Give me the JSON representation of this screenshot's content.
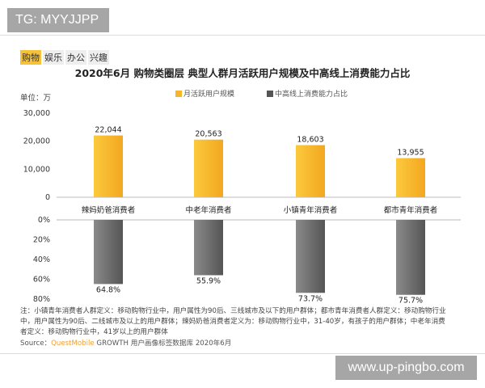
{
  "watermark_top": "TG: MYYJJPP",
  "watermark_bottom": "www.up-pingbo.com",
  "tags": [
    {
      "label": "购物",
      "active": true
    },
    {
      "label": "娱乐",
      "active": false
    },
    {
      "label": "办公",
      "active": false
    },
    {
      "label": "兴趣",
      "active": false
    }
  ],
  "unit": "单位：万",
  "note": "注：小镇青年消费者人群定义：移动购物行业中，用户属性为90后、三线城市及以下的用户群体；都市青年消费者人群定义：移动购物行业中，用户属性为90后、二线城市及以上的用户群体；辣妈奶爸消费者定义为：移动购物行业中，31-40岁，有孩子的用户群体；中老年消费者定义：移动购物行业中，41岁以上的用户群体",
  "source": {
    "prefix": "Source：",
    "brand": "QuestMobile",
    "rest": " GROWTH 用户画像标签数据库 2020年6月"
  },
  "chart_data": {
    "type": "bar",
    "title": "2020年6月 购物类圈层 典型人群月活跃用户规模及中高线上消费能力占比",
    "categories": [
      "辣妈奶爸消费者",
      "中老年消费者",
      "小镇青年消费者",
      "都市青年消费者"
    ],
    "series": [
      {
        "name": "月活跃用户规模",
        "values": [
          22044,
          20563,
          18603,
          13955
        ],
        "labels": [
          "22,044",
          "20,563",
          "18,603",
          "13,955"
        ],
        "color": "#f7b52c",
        "ylim": [
          0,
          30000
        ],
        "ticks": [
          "0",
          "10,000",
          "20,000",
          "30,000"
        ]
      },
      {
        "name": "中高线上消费能力占比",
        "values": [
          64.8,
          55.9,
          73.7,
          75.7
        ],
        "labels": [
          "64.8%",
          "55.9%",
          "73.7%",
          "75.7%"
        ],
        "color": "#6b6b6b",
        "ylim": [
          0,
          80
        ],
        "ticks": [
          "0%",
          "20%",
          "40%",
          "60%",
          "80%"
        ],
        "inverted": true
      }
    ],
    "legend": "top"
  }
}
